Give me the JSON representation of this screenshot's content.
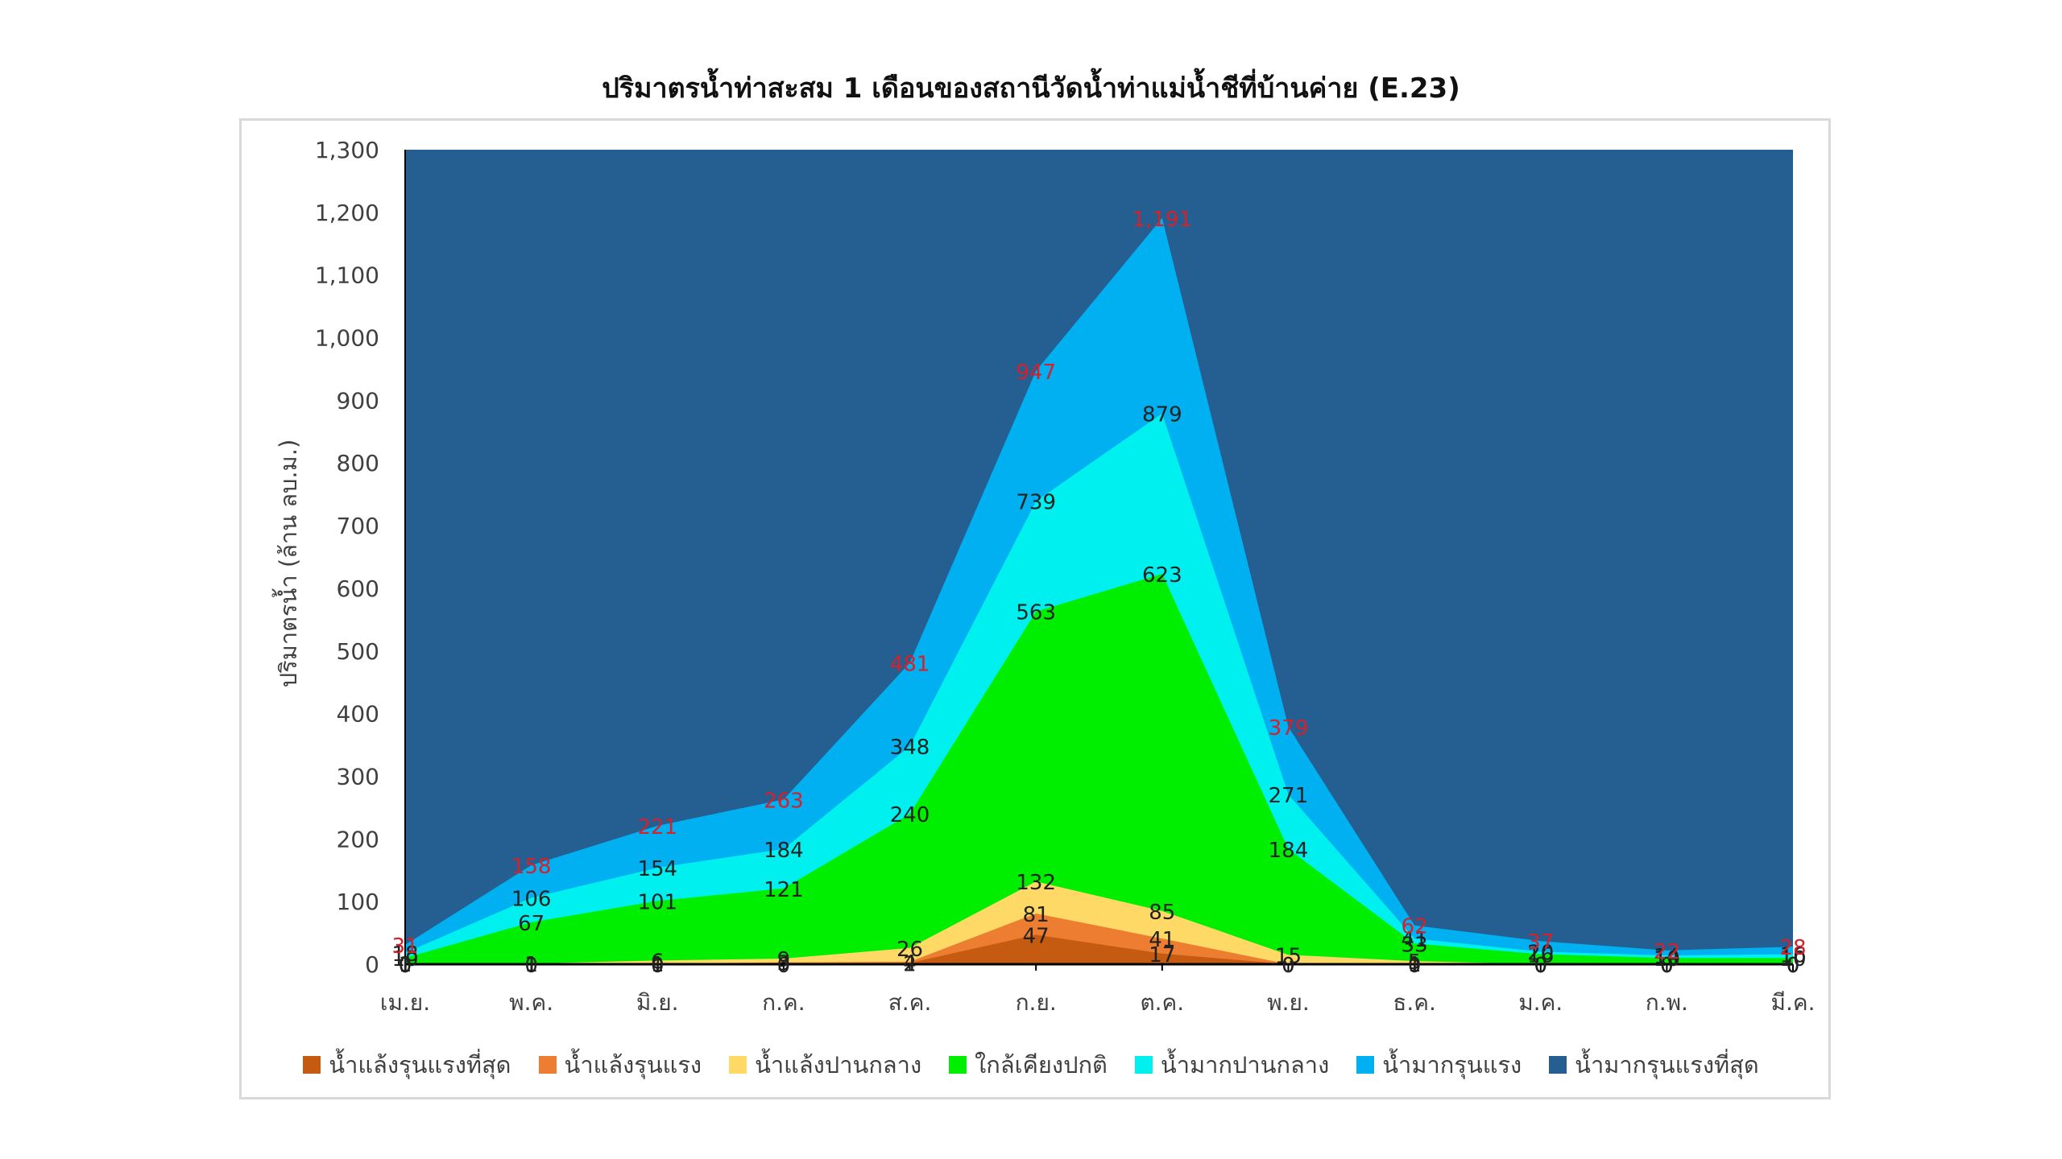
{
  "chart_data": {
    "type": "area",
    "title": "ปริมาตรน้ำท่าสะสม 1 เดือนของสถานีวัดน้ำท่าแม่น้ำชีที่บ้านค่าย (E.23)",
    "ylabel": "ปริมาตรน้ำ (ล้าน ลบ.ม.)",
    "xlabel": "",
    "categories": [
      "เม.ย.",
      "พ.ค.",
      "มิ.ย.",
      "ก.ค.",
      "ส.ค.",
      "ก.ย.",
      "ต.ค.",
      "พ.ย.",
      "ธ.ค.",
      "ม.ค.",
      "ก.พ.",
      "มี.ค."
    ],
    "ylim": [
      0,
      1300
    ],
    "yticks": [
      "0",
      "100",
      "200",
      "300",
      "400",
      "500",
      "600",
      "700",
      "800",
      "900",
      "1,000",
      "1,100",
      "1,200",
      "1,300"
    ],
    "grid": false,
    "legend_position": "bottom",
    "background_band": {
      "name": "น้ำมากรุนแรงที่สุด",
      "color": "#255e91"
    },
    "series": [
      {
        "name": "น้ำแล้งรุนแรงที่สุด",
        "color": "#c55a11",
        "values": [
          0,
          0,
          0,
          0,
          2,
          47,
          17,
          0,
          0,
          0,
          0,
          0
        ],
        "labels": [
          "0",
          "0",
          "0",
          "0",
          "2",
          "47",
          "17",
          "0",
          "0",
          "0",
          "0",
          "0"
        ]
      },
      {
        "name": "น้ำแล้งรุนแรง",
        "color": "#ed7d31",
        "values": [
          0,
          1,
          1,
          3,
          4,
          81,
          41,
          0,
          1,
          0,
          0,
          0
        ],
        "labels": [
          "0",
          "1",
          "1",
          "3",
          "4",
          "81",
          "41",
          "0",
          "1",
          "0",
          "0",
          "0"
        ]
      },
      {
        "name": "น้ำแล้งปานกลาง",
        "color": "#ffd966",
        "values": [
          1,
          1,
          6,
          9,
          26,
          132,
          85,
          15,
          5,
          0,
          0,
          0
        ],
        "labels": [
          "1",
          "1",
          "6",
          "9",
          "26",
          "132",
          "85",
          "15",
          "5",
          "0",
          "0",
          "0"
        ]
      },
      {
        "name": "ใกล้เคียงปกติ",
        "color": "#00ee00",
        "values": [
          10,
          67,
          101,
          121,
          240,
          563,
          623,
          184,
          33,
          16,
          10,
          10
        ],
        "labels": [
          "10",
          "67",
          "101",
          "121",
          "240",
          "563",
          "623",
          "184",
          "33",
          "16",
          "10",
          "10"
        ]
      },
      {
        "name": "น้ำมากปานกลาง",
        "color": "#00f0f0",
        "values": [
          18,
          106,
          154,
          184,
          348,
          739,
          879,
          271,
          41,
          20,
          14,
          16
        ],
        "labels": [
          "18",
          "106",
          "154",
          "184",
          "348",
          "739",
          "879",
          "271",
          "41",
          "20",
          "14",
          "16"
        ]
      },
      {
        "name": "น้ำมากรุนแรง",
        "color": "#00b0f0",
        "values": [
          31,
          158,
          221,
          263,
          481,
          947,
          1191,
          379,
          62,
          37,
          22,
          28
        ],
        "labels": [
          "31",
          "158",
          "221",
          "263",
          "481",
          "947",
          "1,191",
          "379",
          "62",
          "37",
          "22",
          "28"
        ]
      }
    ]
  }
}
